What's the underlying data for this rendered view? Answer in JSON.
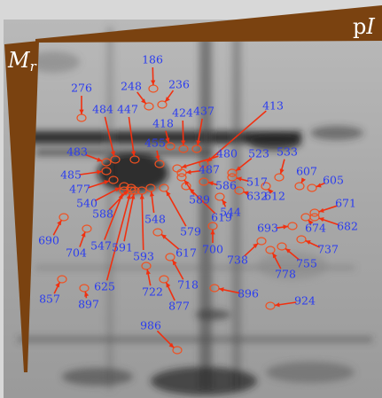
{
  "axes": {
    "pi": {
      "p": "p",
      "I": "I"
    },
    "mr": {
      "M": "M",
      "r": "r"
    }
  },
  "spots": [
    "186",
    "276",
    "248",
    "236",
    "484",
    "447",
    "418",
    "424",
    "437",
    "413",
    "455",
    "483",
    "485",
    "477",
    "480",
    "487",
    "523",
    "533",
    "607",
    "605",
    "517",
    "586",
    "632",
    "612",
    "589",
    "544",
    "619",
    "540",
    "588",
    "548",
    "579",
    "693",
    "674",
    "671",
    "682",
    "690",
    "704",
    "547",
    "591",
    "593",
    "617",
    "700",
    "738",
    "737",
    "755",
    "778",
    "625",
    "718",
    "722",
    "877",
    "896",
    "857",
    "897",
    "924",
    "986"
  ]
}
